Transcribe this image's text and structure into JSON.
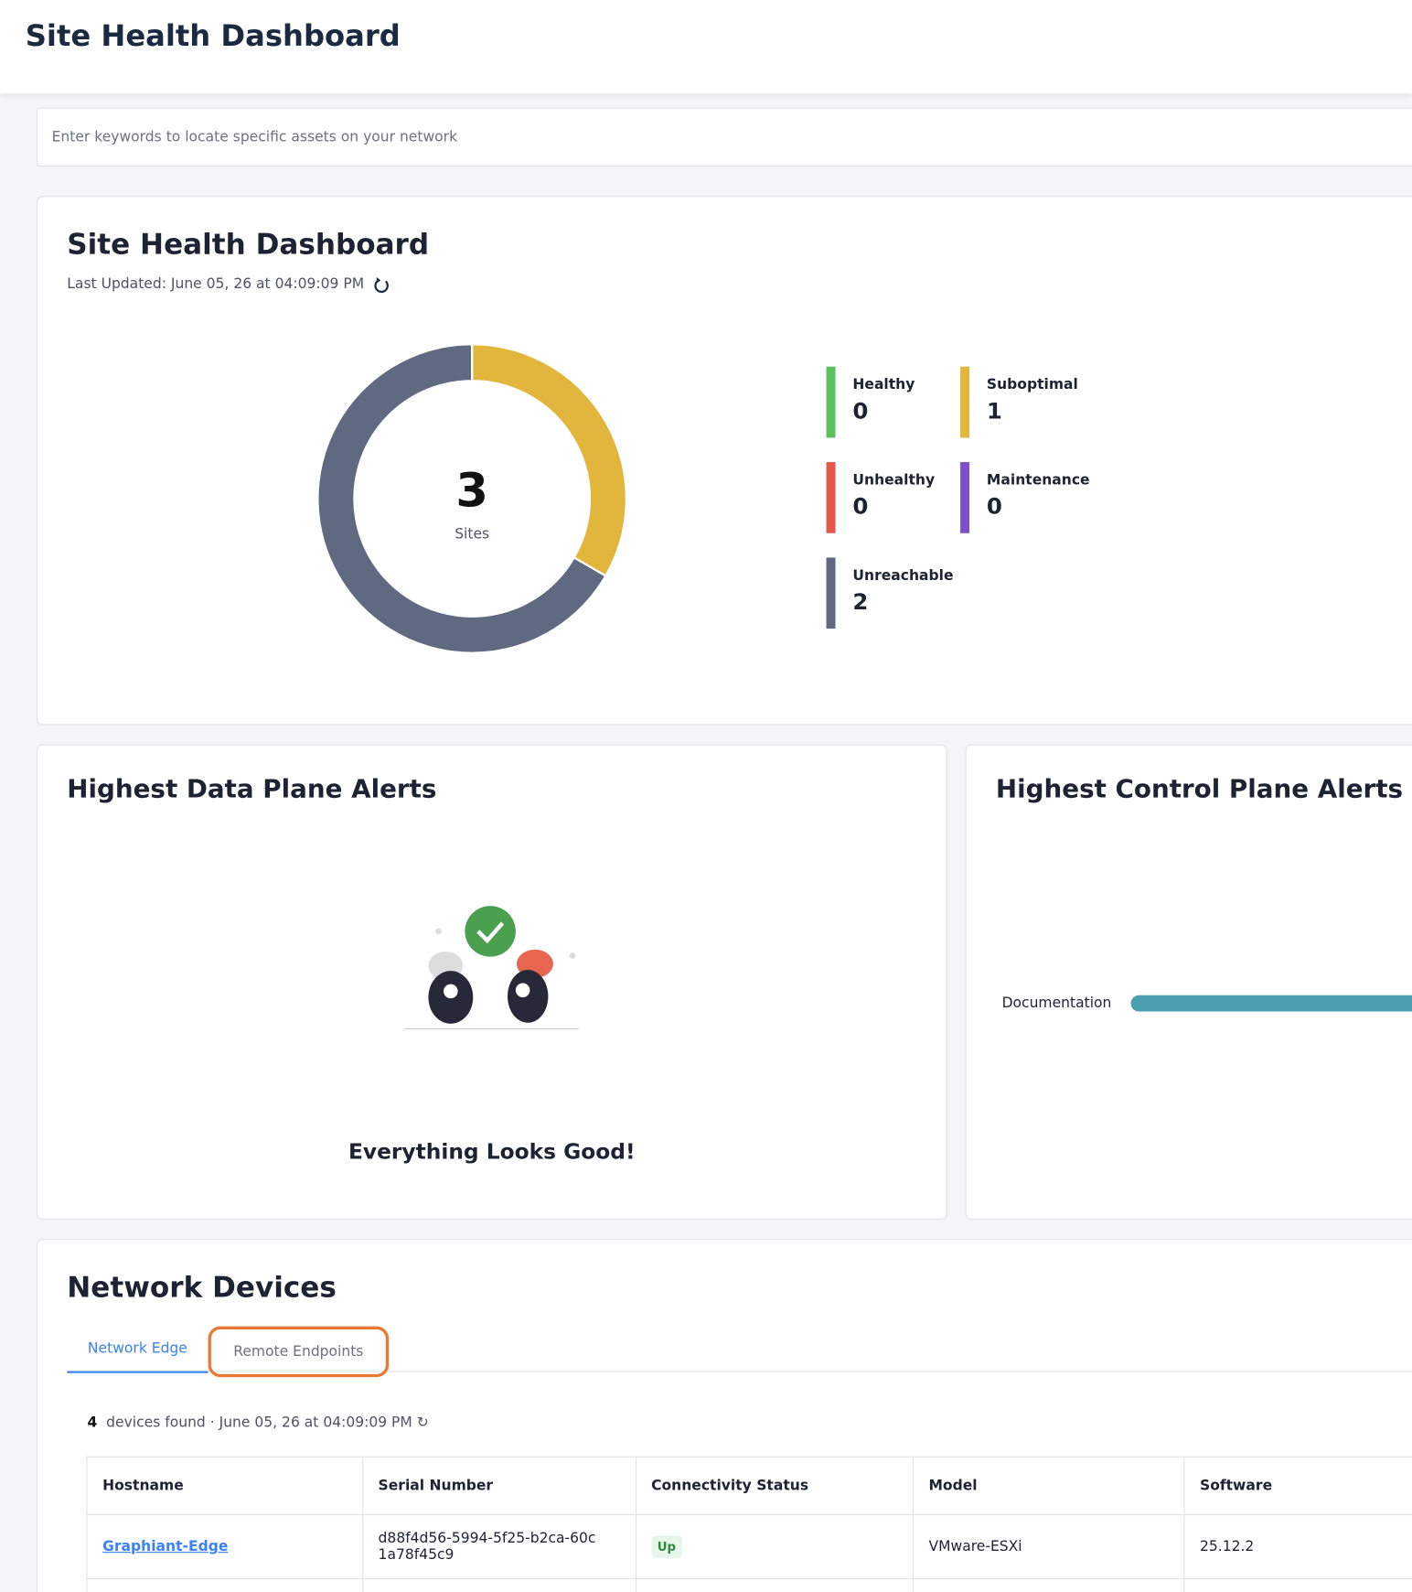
{
  "header": {
    "title": "Site Health Dashboard"
  },
  "search": {
    "placeholder": "Enter keywords to locate specific assets on your network"
  },
  "site_health": {
    "title": "Site Health Dashboard",
    "last_updated": "Last Updated: June 05, 26 at 04:09:09 PM"
  },
  "chart_data": {
    "type": "donut",
    "total": 3,
    "center_label": "Sites",
    "categories": [
      "Healthy",
      "Suboptimal",
      "Unhealthy",
      "Maintenance",
      "Unreachable"
    ],
    "values": [
      0,
      1,
      0,
      0,
      2
    ],
    "colors": [
      "#5cc160",
      "#e2b53c",
      "#e4574a",
      "#7e4fc9",
      "#5f6a80"
    ]
  },
  "data_plane": {
    "title": "Highest Data Plane Alerts",
    "message": "Everything Looks Good!"
  },
  "control_plane": {
    "title": "Highest Control Plane Alerts",
    "label": "Documentation"
  },
  "devices": {
    "title": "Network Devices",
    "tabs": [
      "Network Edge",
      "Remote Endpoints"
    ],
    "count": 4,
    "found": "devices found",
    "timestamp": "June 05, 26 at 04:09:09 PM",
    "table": {
      "columns": [
        "Hostname",
        "Serial Number",
        "Connectivity Status",
        "Model",
        "Software"
      ],
      "rows": [
        [
          "Graphiant-Edge",
          "d88f4d56-5994-5f25-b2ca-60c1a78f45c9",
          "Up",
          "VMware-ESXi",
          "25.12.2"
        ]
      ]
    }
  }
}
